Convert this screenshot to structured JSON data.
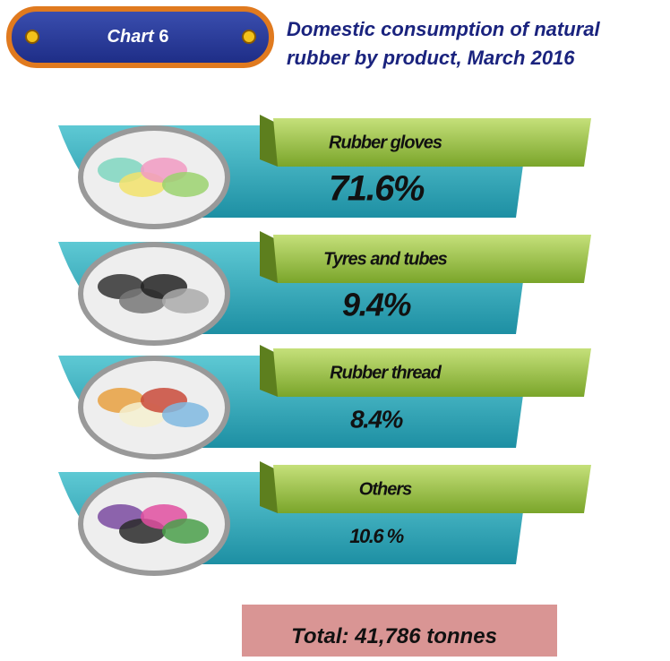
{
  "header": {
    "badge": {
      "word": "Chart",
      "number": "6"
    },
    "title_lines": [
      "Domestic consumption of natural",
      "rubber by product, March 2016"
    ]
  },
  "items": [
    {
      "label": "Rubber gloves",
      "value": "71.6%"
    },
    {
      "label": "Tyres and tubes",
      "value": "9.4%"
    },
    {
      "label": "Rubber thread",
      "value": "8.4%"
    },
    {
      "label": "Others",
      "value": "10.6 %"
    }
  ],
  "total": {
    "label": "Total:",
    "value": "41,786 tonnes"
  }
}
